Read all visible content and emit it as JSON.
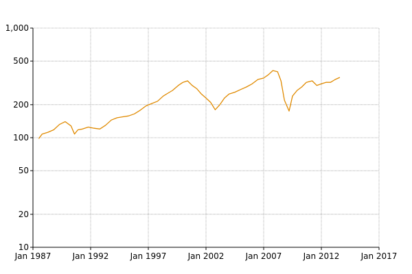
{
  "chart_data": {
    "type": "line",
    "title": "",
    "xlabel": "",
    "ylabel": "",
    "yscale": "log",
    "ylim": [
      10,
      1000
    ],
    "xlim": [
      "Jan 1987",
      "Jan 2017"
    ],
    "grid": true,
    "y_ticks": [
      {
        "value": 10,
        "label": "10"
      },
      {
        "value": 20,
        "label": "20"
      },
      {
        "value": 50,
        "label": "50"
      },
      {
        "value": 100,
        "label": "100"
      },
      {
        "value": 200,
        "label": "200"
      },
      {
        "value": 500,
        "label": "500"
      },
      {
        "value": 1000,
        "label": "1,000"
      }
    ],
    "x_ticks": [
      {
        "value": 1987,
        "label": "Jan 1987"
      },
      {
        "value": 1992,
        "label": "Jan 1992"
      },
      {
        "value": 1997,
        "label": "Jan 1997"
      },
      {
        "value": 2002,
        "label": "Jan 2002"
      },
      {
        "value": 2007,
        "label": "Jan 2007"
      },
      {
        "value": 2012,
        "label": "Jan 2012"
      },
      {
        "value": 2017,
        "label": "Jan 2017"
      }
    ],
    "series": [
      {
        "color": "#e08a00",
        "x": [
          1987.5,
          1987.8,
          1988.3,
          1988.8,
          1989.3,
          1989.8,
          1990.3,
          1990.6,
          1990.9,
          1991.3,
          1991.8,
          1992.3,
          1992.8,
          1993.3,
          1993.8,
          1994.3,
          1994.8,
          1995.3,
          1995.8,
          1996.3,
          1996.8,
          1997.3,
          1997.8,
          1998.3,
          1998.7,
          1999.1,
          1999.6,
          2000.0,
          2000.4,
          2000.8,
          2001.2,
          2001.6,
          2002.0,
          2002.4,
          2002.8,
          2003.2,
          2003.6,
          2004.0,
          2004.5,
          2005.0,
          2005.5,
          2006.0,
          2006.5,
          2007.0,
          2007.4,
          2007.8,
          2008.2,
          2008.5,
          2008.8,
          2009.2,
          2009.5,
          2009.9,
          2010.3,
          2010.7,
          2011.2,
          2011.6,
          2012.0,
          2012.4,
          2012.8,
          2013.2,
          2013.6
        ],
        "y": [
          98,
          108,
          112,
          118,
          132,
          140,
          128,
          108,
          118,
          120,
          125,
          122,
          120,
          130,
          145,
          152,
          155,
          158,
          165,
          178,
          195,
          205,
          215,
          240,
          255,
          270,
          300,
          320,
          330,
          300,
          280,
          250,
          230,
          210,
          180,
          200,
          230,
          250,
          260,
          275,
          290,
          310,
          340,
          350,
          375,
          410,
          400,
          330,
          220,
          175,
          240,
          270,
          290,
          320,
          330,
          300,
          310,
          320,
          320,
          340,
          355
        ]
      }
    ]
  }
}
